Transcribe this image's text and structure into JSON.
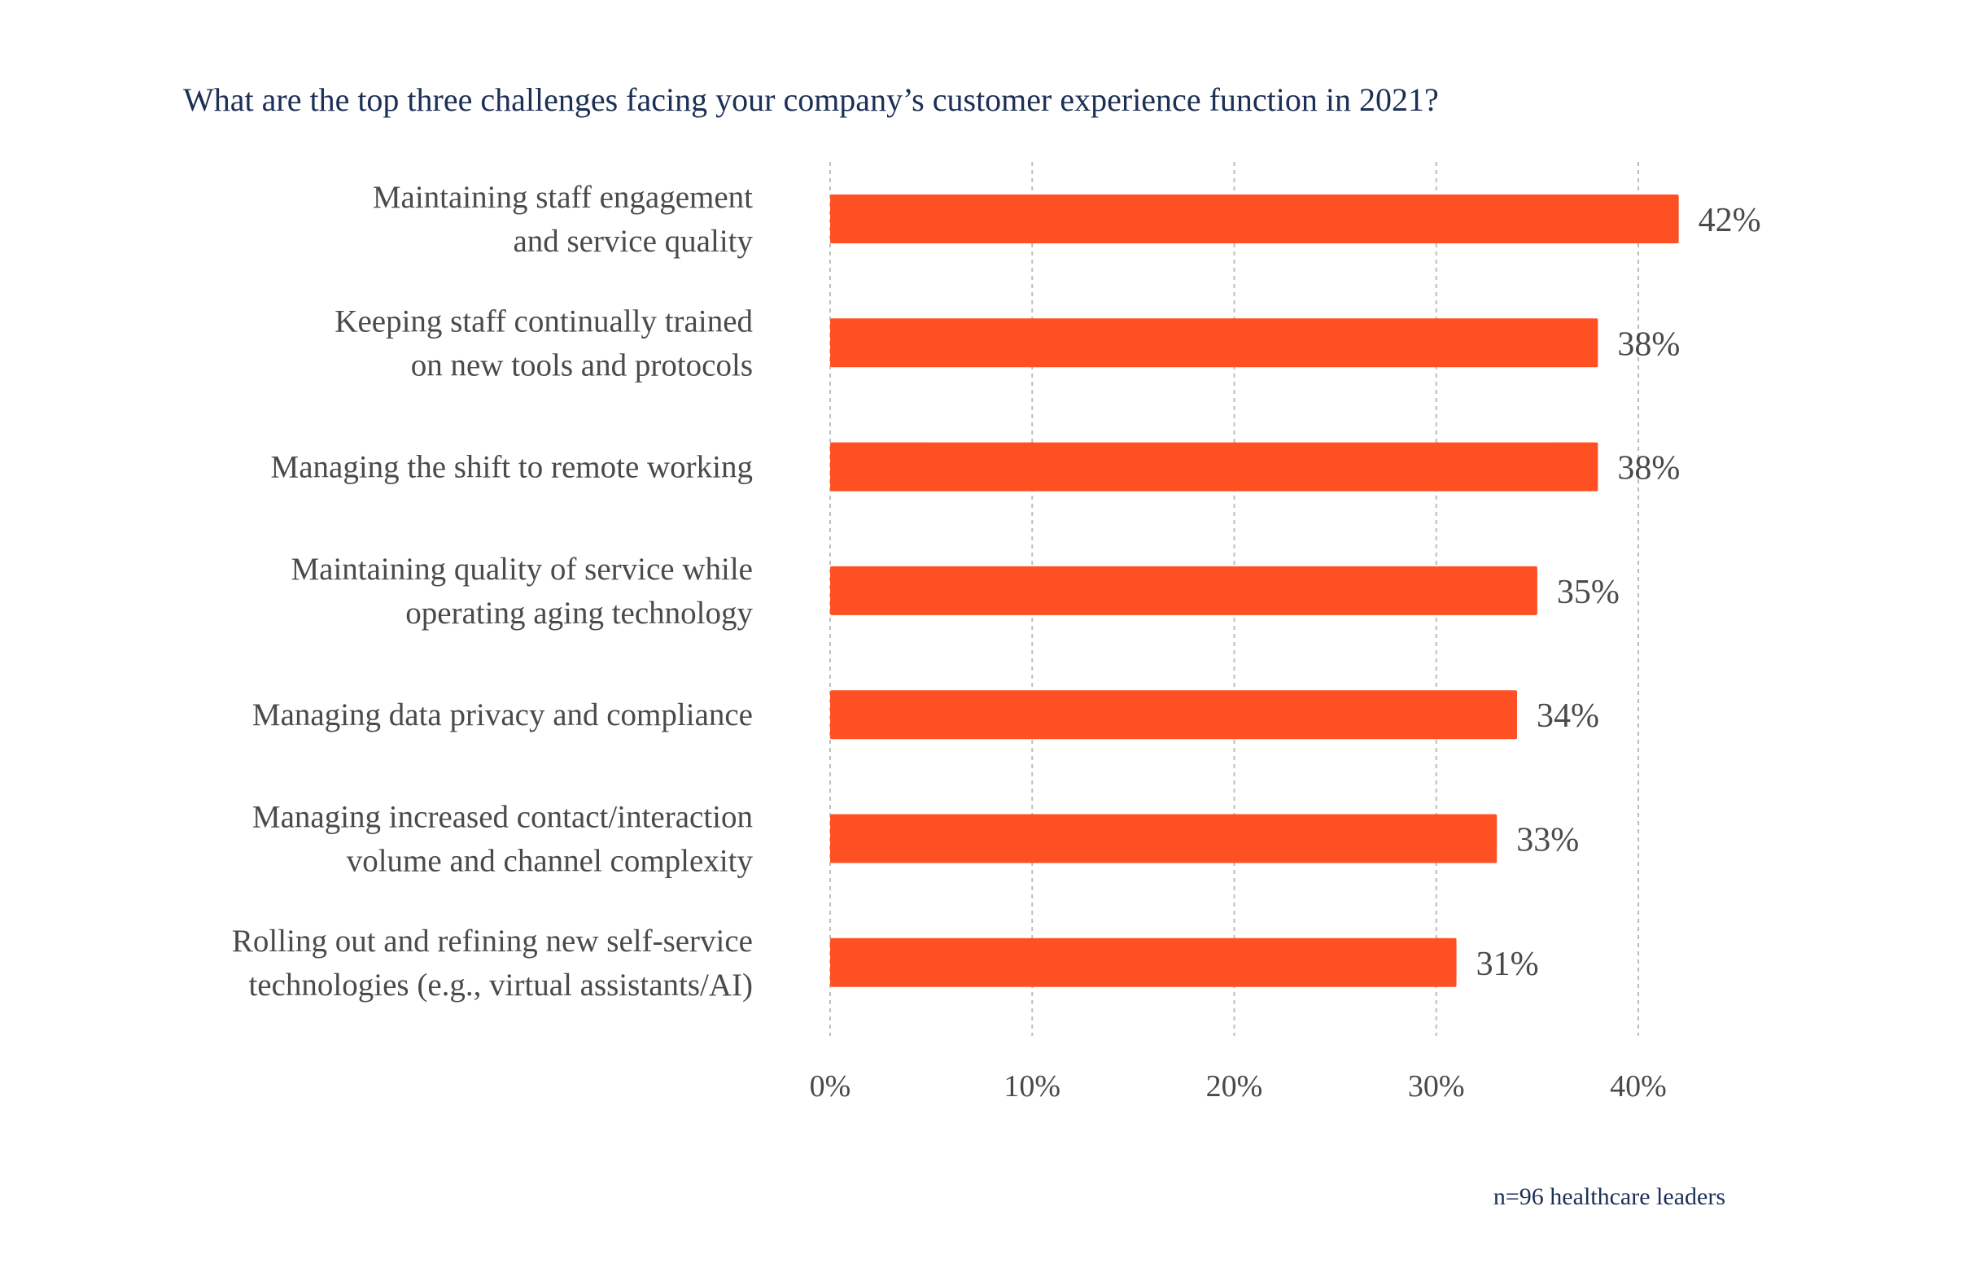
{
  "chart_data": {
    "type": "bar",
    "orientation": "horizontal",
    "title": "What are the top three challenges facing your company’s customer experience function in 2021?",
    "categories": [
      [
        "Maintaining staff engagement",
        "and service quality"
      ],
      [
        "Keeping staff continually trained",
        "on new tools and protocols"
      ],
      [
        "Managing the shift to remote working"
      ],
      [
        "Maintaining quality of service while",
        "operating aging technology"
      ],
      [
        "Managing data privacy and compliance"
      ],
      [
        "Managing increased contact/interaction",
        "volume and channel complexity"
      ],
      [
        "Rolling out and refining new self-service",
        "technologies (e.g., virtual assistants/AI)"
      ]
    ],
    "values": [
      42,
      38,
      38,
      35,
      34,
      33,
      31
    ],
    "data_labels": [
      "42%",
      "38%",
      "38%",
      "35%",
      "34%",
      "33%",
      "31%"
    ],
    "xlim": [
      0,
      40
    ],
    "x_ticks": [
      0,
      10,
      20,
      30,
      40
    ],
    "x_tick_labels": [
      "0%",
      "10%",
      "20%",
      "30%",
      "40%"
    ],
    "grid": "vertical dashed",
    "bar_color": "#ff5023",
    "footnote": "n=96 healthcare leaders"
  }
}
